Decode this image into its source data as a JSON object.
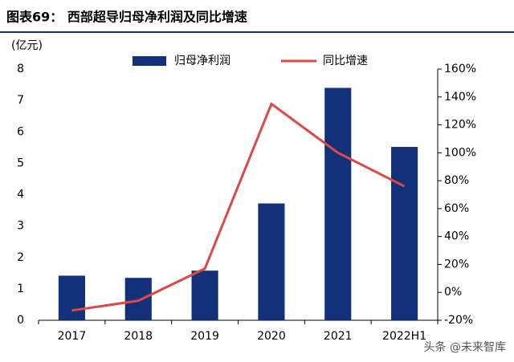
{
  "chart_data": {
    "type": "bar",
    "title": "图表69： 西部超导归母净利润及同比增速",
    "y_label": "(亿元)",
    "categories": [
      "2017",
      "2018",
      "2019",
      "2020",
      "2021",
      "2022H1"
    ],
    "series": [
      {
        "name": "归母净利润",
        "type": "bar",
        "color": "#13307a",
        "values": [
          1.42,
          1.35,
          1.58,
          3.72,
          7.4,
          5.52
        ]
      },
      {
        "name": "同比增速",
        "type": "line",
        "axis": "y2",
        "color": "#e04846",
        "values": [
          -13,
          -6,
          17,
          135,
          100,
          76
        ]
      }
    ],
    "ylim": [
      0,
      8
    ],
    "yticks": [
      0,
      1,
      2,
      3,
      4,
      5,
      6,
      7,
      8
    ],
    "y2lim": [
      -20,
      160
    ],
    "y2ticks": [
      {
        "value": -20,
        "label": "-20%"
      },
      {
        "value": 0,
        "label": "0%"
      },
      {
        "value": 20,
        "label": "20%"
      },
      {
        "value": 40,
        "label": "40%"
      },
      {
        "value": 60,
        "label": "60%"
      },
      {
        "value": 80,
        "label": "80%"
      },
      {
        "value": 100,
        "label": "100%"
      },
      {
        "value": 120,
        "label": "120%"
      },
      {
        "value": 140,
        "label": "140%"
      },
      {
        "value": 160,
        "label": "160%"
      }
    ],
    "legend": "top",
    "watermark": "头条 @未来智库"
  }
}
